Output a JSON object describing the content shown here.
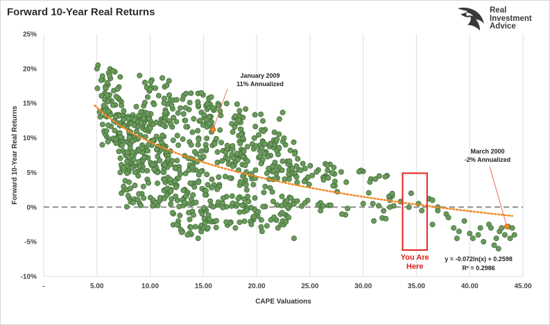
{
  "header": {
    "title": "Forward 10-Year Real Returns",
    "logo_lines": [
      "Real",
      "Investment",
      "Advice"
    ]
  },
  "colors": {
    "dot_fill": "#6b9a5c",
    "dot_stroke": "#3e6b34",
    "trend": "#f08a24",
    "zero_line": "#8c8c8c",
    "box": "#e0201c",
    "annotation_arrow": "#e8675d"
  },
  "chart_data": {
    "type": "scatter",
    "xlabel": "CAPE Valuations",
    "ylabel": "Forward 10-Year Real Returns",
    "xlim": [
      0,
      45
    ],
    "ylim": [
      -0.1,
      0.25
    ],
    "x_ticks": [
      "-",
      "5.00",
      "10.00",
      "15.00",
      "20.00",
      "25.00",
      "30.00",
      "35.00",
      "40.00",
      "45.00"
    ],
    "y_ticks": [
      "-10%",
      "-5%",
      "0%",
      "5%",
      "10%",
      "15%",
      "20%",
      "25%"
    ],
    "grid_x": true,
    "grid_y": false,
    "reference_line_y": 0,
    "trendline": {
      "type": "log",
      "a": -0.072,
      "b": 0.2598,
      "equation": "y = -0.072ln(x) + 0.2598",
      "r2": "R² = 0.2986"
    },
    "annotations": [
      {
        "lines": [
          "January 2009",
          "11% Annualized"
        ],
        "x": 15.9,
        "y": 0.112
      },
      {
        "lines": [
          "March 2000",
          "-2% Annualized"
        ],
        "x": 43.5,
        "y": -0.028
      }
    ],
    "highlight": {
      "label_lines": [
        "You Are",
        "Here"
      ],
      "x_range": [
        33.7,
        36.0
      ],
      "y_range": [
        -0.062,
        0.049
      ]
    },
    "clusters": [
      {
        "x": [
          5.0,
          7.5
        ],
        "y": [
          0.13,
          0.205
        ],
        "n": 50
      },
      {
        "x": [
          5.5,
          8.5
        ],
        "y": [
          0.09,
          0.14
        ],
        "n": 40
      },
      {
        "x": [
          7.0,
          11.5
        ],
        "y": [
          0.05,
          0.13
        ],
        "n": 120
      },
      {
        "x": [
          8.5,
          12.0
        ],
        "y": [
          0.11,
          0.19
        ],
        "n": 40
      },
      {
        "x": [
          7.5,
          12.0
        ],
        "y": [
          0.0,
          0.08
        ],
        "n": 70
      },
      {
        "x": [
          11.0,
          16.0
        ],
        "y": [
          0.08,
          0.165
        ],
        "n": 70
      },
      {
        "x": [
          11.0,
          15.0
        ],
        "y": [
          0.02,
          0.08
        ],
        "n": 60
      },
      {
        "x": [
          12.0,
          16.0
        ],
        "y": [
          -0.04,
          0.02
        ],
        "n": 50
      },
      {
        "x": [
          15.0,
          19.0
        ],
        "y": [
          0.06,
          0.15
        ],
        "n": 70
      },
      {
        "x": [
          15.0,
          20.0
        ],
        "y": [
          -0.03,
          0.05
        ],
        "n": 70
      },
      {
        "x": [
          17.5,
          22.5
        ],
        "y": [
          0.04,
          0.14
        ],
        "n": 60
      },
      {
        "x": [
          19.0,
          23.5
        ],
        "y": [
          -0.03,
          0.03
        ],
        "n": 40
      },
      {
        "x": [
          20.0,
          24.0
        ],
        "y": [
          0.04,
          0.1
        ],
        "n": 40
      },
      {
        "x": [
          23.0,
          28.0
        ],
        "y": [
          0.03,
          0.065
        ],
        "n": 35
      },
      {
        "x": [
          22.0,
          27.0
        ],
        "y": [
          0.0,
          0.01
        ],
        "n": 12
      },
      {
        "x": [
          26.0,
          33.0
        ],
        "y": [
          0.0,
          0.055
        ],
        "n": 20
      },
      {
        "x": [
          28.0,
          33.0
        ],
        "y": [
          -0.02,
          0.02
        ],
        "n": 10
      }
    ],
    "points": [
      [
        5.1,
        0.205
      ],
      [
        5.0,
        0.2
      ],
      [
        6.2,
        0.19
      ],
      [
        6.5,
        0.197
      ],
      [
        9.0,
        0.19
      ],
      [
        9.5,
        0.18
      ],
      [
        10.0,
        0.17
      ],
      [
        14.8,
        0.165
      ],
      [
        5.5,
        0.09
      ],
      [
        5.9,
        0.11
      ],
      [
        7.3,
        0.02
      ],
      [
        7.5,
        0.03
      ],
      [
        12.5,
        -0.025
      ],
      [
        13.5,
        -0.04
      ],
      [
        14.5,
        -0.045
      ],
      [
        15.0,
        -0.03
      ],
      [
        18.0,
        -0.03
      ],
      [
        19.5,
        -0.025
      ],
      [
        20.5,
        -0.035
      ],
      [
        22.0,
        -0.03
      ],
      [
        23.5,
        -0.045
      ],
      [
        23.0,
        -0.015
      ],
      [
        26.0,
        -0.005
      ],
      [
        28.0,
        -0.01
      ],
      [
        30.0,
        0.005
      ],
      [
        31.0,
        -0.02
      ],
      [
        32.5,
        0.01
      ],
      [
        33.5,
        0.008
      ],
      [
        34.3,
        0.0
      ],
      [
        34.5,
        0.02
      ],
      [
        35.2,
        0.005
      ],
      [
        35.5,
        -0.005
      ],
      [
        36.2,
        0.012
      ],
      [
        36.5,
        0.01
      ],
      [
        37.0,
        0.0
      ],
      [
        37.0,
        -0.005
      ],
      [
        36.5,
        -0.025
      ],
      [
        37.8,
        -0.01
      ],
      [
        38.0,
        -0.015
      ],
      [
        38.5,
        -0.03
      ],
      [
        39.0,
        -0.035
      ],
      [
        39.5,
        -0.02
      ],
      [
        40.0,
        -0.038
      ],
      [
        40.3,
        -0.045
      ],
      [
        40.8,
        -0.04
      ],
      [
        41.0,
        -0.03
      ],
      [
        41.3,
        -0.05
      ],
      [
        41.8,
        -0.025
      ],
      [
        42.0,
        -0.03
      ],
      [
        42.5,
        -0.045
      ],
      [
        42.3,
        -0.055
      ],
      [
        42.7,
        -0.06
      ],
      [
        42.8,
        -0.035
      ],
      [
        43.0,
        -0.03
      ],
      [
        43.3,
        -0.04
      ],
      [
        43.6,
        -0.028
      ],
      [
        43.8,
        -0.045
      ],
      [
        44.0,
        -0.03
      ],
      [
        44.2,
        -0.04
      ],
      [
        38.8,
        -0.045
      ]
    ]
  }
}
